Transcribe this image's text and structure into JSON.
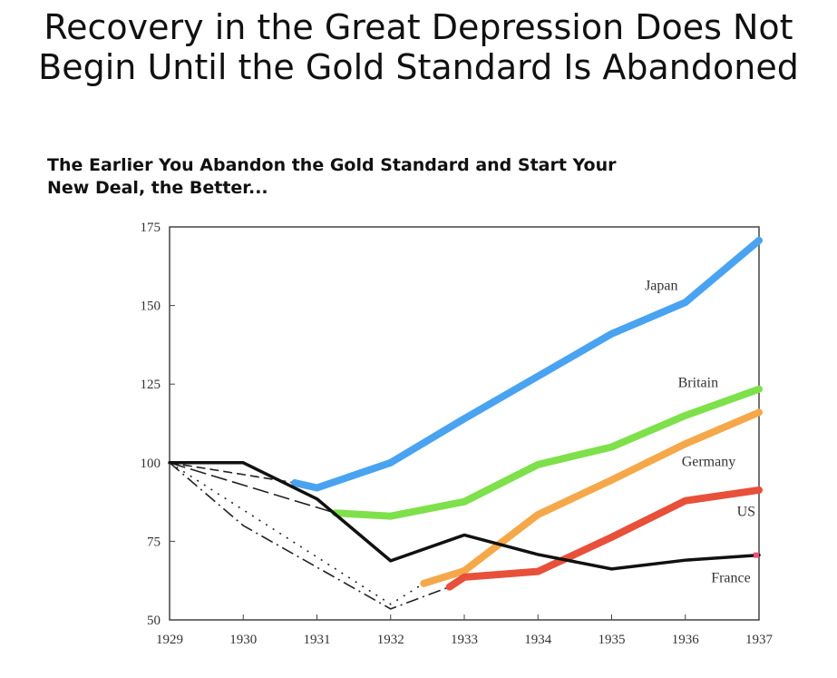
{
  "slide": {
    "title": "Recovery in the Great Depression Does Not Begin Until the Gold Standard Is Abandoned"
  },
  "chart_data": {
    "type": "line",
    "title": "The Earlier You Abandon the Gold Standard and Start Your New Deal, the Better...",
    "xlabel": "",
    "ylabel": "",
    "xlim": [
      1929,
      1937
    ],
    "ylim": [
      50,
      175
    ],
    "x_ticks": [
      "1929",
      "1930",
      "1931",
      "1932",
      "1933",
      "1934",
      "1935",
      "1936",
      "1937"
    ],
    "y_ticks": [
      "50",
      "75",
      "100",
      "125",
      "150",
      "175"
    ],
    "grid": false,
    "series": [
      {
        "name": "Japan",
        "color": "#4aa3f0",
        "gold_standard": {
          "style": "dashed",
          "points": [
            [
              1929,
              100
            ],
            [
              1930.7,
              93.6
            ]
          ]
        },
        "points": [
          [
            1930.7,
            93.6
          ],
          [
            1931,
            92
          ],
          [
            1932,
            100
          ],
          [
            1933,
            114
          ],
          [
            1934,
            127.5
          ],
          [
            1935,
            141
          ],
          [
            1936,
            151
          ],
          [
            1937,
            170.7
          ]
        ]
      },
      {
        "name": "Britain",
        "color": "#7ee04a",
        "gold_standard": {
          "style": "long-dash",
          "points": [
            [
              1929,
              100
            ],
            [
              1931.25,
              84
            ]
          ]
        },
        "points": [
          [
            1931.25,
            84
          ],
          [
            1932,
            83
          ],
          [
            1933,
            87.6
          ],
          [
            1934,
            99.4
          ],
          [
            1935,
            105
          ],
          [
            1936,
            115
          ],
          [
            1937,
            123.4
          ]
        ]
      },
      {
        "name": "Germany",
        "color": "#f5a84a",
        "gold_standard": {
          "style": "dotted",
          "points": [
            [
              1929,
              100
            ],
            [
              1932,
              55
            ],
            [
              1932.45,
              61.6
            ]
          ]
        },
        "points": [
          [
            1932.45,
            61.6
          ],
          [
            1933,
            65.6
          ],
          [
            1934,
            83.5
          ],
          [
            1935,
            94.5
          ],
          [
            1936,
            106
          ],
          [
            1937,
            116
          ]
        ]
      },
      {
        "name": "US",
        "color": "#e8503a",
        "gold_standard": {
          "style": "dash-dot",
          "points": [
            [
              1929,
              100
            ],
            [
              1930,
              80
            ],
            [
              1932,
              53.5
            ],
            [
              1932.8,
              60.5
            ]
          ]
        },
        "points": [
          [
            1932.8,
            60.5
          ],
          [
            1933,
            63.6
          ],
          [
            1934,
            65.4
          ],
          [
            1935,
            76.3
          ],
          [
            1936,
            87.9
          ],
          [
            1937,
            91.3
          ]
        ]
      },
      {
        "name": "France",
        "color": "#111111",
        "end_color": "#e8507a",
        "points": [
          [
            1929,
            100
          ],
          [
            1930,
            100
          ],
          [
            1931,
            88.5
          ],
          [
            1932,
            68.8
          ],
          [
            1933,
            77
          ],
          [
            1934,
            70.8
          ],
          [
            1935,
            66.2
          ],
          [
            1936,
            69
          ],
          [
            1937,
            70.6
          ]
        ]
      }
    ],
    "labels": [
      {
        "series": "Japan",
        "at": [
          1935.45,
          155
        ]
      },
      {
        "series": "Britain",
        "at": [
          1935.9,
          124
        ]
      },
      {
        "series": "Germany",
        "at": [
          1935.95,
          99
        ]
      },
      {
        "series": "US",
        "at": [
          1936.7,
          83
        ]
      },
      {
        "series": "France",
        "at": [
          1936.35,
          62
        ]
      }
    ]
  }
}
